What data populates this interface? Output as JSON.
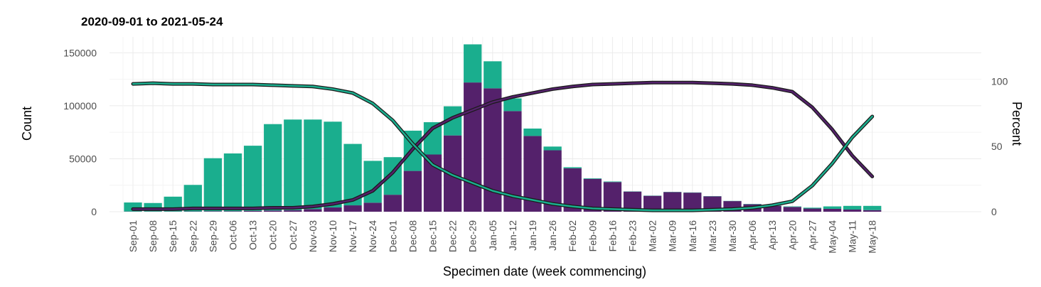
{
  "chart_data": {
    "type": "bar",
    "title": "2020-09-01 to 2021-05-24",
    "xlabel": "Specimen date (week commencing)",
    "ylabel": "Count",
    "y2label": "Percent",
    "ylim": [
      0,
      165000
    ],
    "y2lim": [
      0,
      134
    ],
    "yticks": [
      0,
      50000,
      100000,
      150000
    ],
    "y2ticks": [
      0,
      50,
      100
    ],
    "grid": true,
    "stacked": true,
    "colors": {
      "purple": "#54216b",
      "teal": "#1aae8e",
      "line_outline": "#1a1a1a"
    },
    "categories": [
      "Sep-01",
      "Sep-08",
      "Sep-15",
      "Sep-22",
      "Sep-29",
      "Oct-06",
      "Oct-13",
      "Oct-20",
      "Oct-27",
      "Nov-03",
      "Nov-10",
      "Nov-17",
      "Nov-24",
      "Dec-01",
      "Dec-08",
      "Dec-15",
      "Dec-22",
      "Dec-29",
      "Jan-05",
      "Jan-12",
      "Jan-19",
      "Jan-26",
      "Feb-02",
      "Feb-09",
      "Feb-16",
      "Feb-23",
      "Mar-02",
      "Mar-09",
      "Mar-16",
      "Mar-23",
      "Mar-30",
      "Apr-06",
      "Apr-13",
      "Apr-20",
      "Apr-27",
      "May-04",
      "May-11",
      "May-18"
    ],
    "series": [
      {
        "color": "#54216b",
        "values": [
          200,
          200,
          200,
          300,
          500,
          500,
          800,
          1200,
          1500,
          2500,
          4000,
          6000,
          8500,
          16000,
          38500,
          54000,
          72000,
          122000,
          116500,
          95000,
          71500,
          58000,
          41000,
          31000,
          28000,
          19000,
          15000,
          18500,
          18000,
          14500,
          10000,
          7000,
          5500,
          4500,
          3000,
          2700,
          2000,
          1500
        ]
      },
      {
        "color": "#1aae8e",
        "values": [
          8500,
          8000,
          14000,
          25000,
          50000,
          54500,
          61500,
          81500,
          85500,
          84500,
          81000,
          58000,
          39500,
          35500,
          38000,
          30500,
          27500,
          36000,
          25500,
          12000,
          7000,
          3500,
          1000,
          500,
          500,
          200,
          200,
          200,
          200,
          200,
          200,
          300,
          400,
          500,
          800,
          2300,
          3500,
          4000
        ]
      }
    ],
    "lines": [
      {
        "color": "#54216b",
        "values": [
          2,
          2,
          2,
          2.5,
          2.5,
          2.5,
          2.5,
          3,
          3,
          4,
          6,
          9,
          16,
          30,
          48,
          64,
          72,
          78,
          84,
          88,
          91,
          94,
          96,
          97.5,
          98,
          98.5,
          99,
          99,
          99,
          98.5,
          98,
          97,
          95,
          92,
          80,
          63,
          43,
          27
        ]
      },
      {
        "color": "#1aae8e",
        "values": [
          98,
          98.5,
          98,
          98,
          97.5,
          97.5,
          97.5,
          97,
          96.5,
          96,
          94,
          91,
          83,
          70,
          52,
          36,
          28,
          22,
          16,
          12,
          9,
          6,
          4,
          2.5,
          2,
          1.5,
          1,
          1,
          1,
          1.5,
          2,
          3,
          5,
          8,
          20,
          37,
          57,
          73
        ]
      }
    ]
  }
}
